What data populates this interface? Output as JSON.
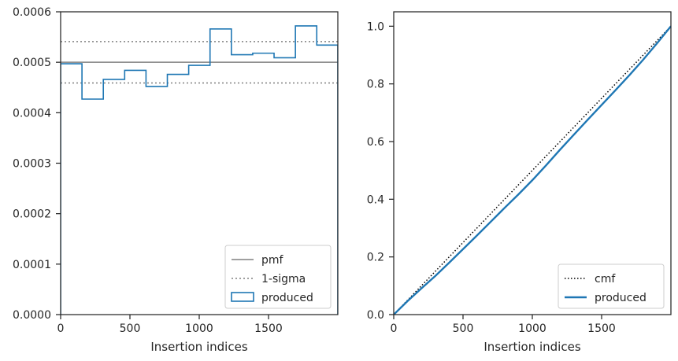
{
  "chart_data": [
    {
      "type": "line",
      "subtype": "step-histogram",
      "xlabel": "Insertion indices",
      "ylabel": "",
      "xlim": [
        0,
        2000
      ],
      "ylim": [
        0,
        0.0006
      ],
      "x_ticks": [
        0,
        500,
        1000,
        1500
      ],
      "x_tick_labels": [
        "0",
        "500",
        "1000",
        "1500"
      ],
      "y_ticks": [
        0,
        0.0001,
        0.0002,
        0.0003,
        0.0004,
        0.0005,
        0.0006
      ],
      "y_tick_labels": [
        "0.0000",
        "0.0001",
        "0.0002",
        "0.0003",
        "0.0004",
        "0.0005",
        "0.0006"
      ],
      "grid": false,
      "legend_position": "bottom-right",
      "series": [
        {
          "name": "pmf",
          "kind": "hline",
          "value": 0.0005,
          "color": "#808080",
          "style": "solid"
        },
        {
          "name": "1-sigma",
          "kind": "hlines",
          "values": [
            0.000541,
            0.000459
          ],
          "color": "#808080",
          "style": "dotted"
        },
        {
          "name": "produced",
          "kind": "step",
          "color": "#1f77b4",
          "bin_edges": [
            0,
            154,
            308,
            462,
            616,
            770,
            924,
            1078,
            1232,
            1386,
            1540,
            1694,
            1848,
            2000
          ],
          "values": [
            0.000497,
            0.000427,
            0.000466,
            0.000484,
            0.000452,
            0.000476,
            0.000494,
            0.000566,
            0.000515,
            0.000518,
            0.000509,
            0.000572,
            0.000534
          ]
        }
      ]
    },
    {
      "type": "line",
      "xlabel": "Insertion indices",
      "ylabel": "",
      "xlim": [
        0,
        2000
      ],
      "ylim": [
        0,
        1.05
      ],
      "x_ticks": [
        0,
        500,
        1000,
        1500
      ],
      "x_tick_labels": [
        "0",
        "500",
        "1000",
        "1500"
      ],
      "y_ticks": [
        0,
        0.2,
        0.4,
        0.6,
        0.8,
        1.0
      ],
      "y_tick_labels": [
        "0.0",
        "0.2",
        "0.4",
        "0.6",
        "0.8",
        "1.0"
      ],
      "grid": false,
      "legend_position": "bottom-right",
      "series": [
        {
          "name": "cmf",
          "kind": "line",
          "color": "#000000",
          "style": "dotted",
          "x": [
            0,
            2000
          ],
          "y": [
            0,
            1.0
          ]
        },
        {
          "name": "produced",
          "kind": "line",
          "color": "#1f77b4",
          "style": "solid",
          "x": [
            0,
            100,
            200,
            300,
            400,
            500,
            600,
            700,
            800,
            900,
            1000,
            1100,
            1200,
            1300,
            1400,
            1500,
            1600,
            1700,
            1800,
            1900,
            2000
          ],
          "y": [
            0,
            0.047,
            0.091,
            0.134,
            0.18,
            0.227,
            0.274,
            0.322,
            0.37,
            0.417,
            0.466,
            0.518,
            0.572,
            0.624,
            0.676,
            0.727,
            0.778,
            0.83,
            0.884,
            0.941,
            1.0
          ]
        }
      ]
    }
  ]
}
